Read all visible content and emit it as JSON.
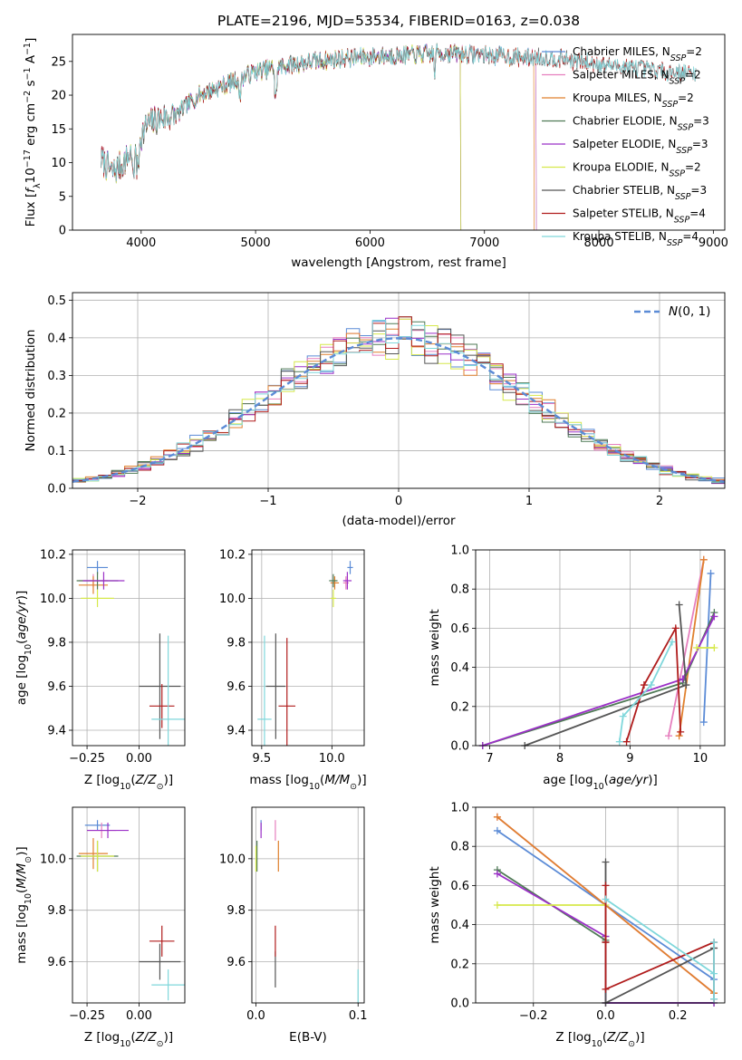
{
  "title": "PLATE=2196, MJD=53534, FIBERID=0163, z=0.038",
  "colors": {
    "Chabrier MILES": "#5b8bd6",
    "Salpeter MILES": "#e67fbe",
    "Kroupa MILES": "#e0802e",
    "Chabrier ELODIE": "#4f7a56",
    "Salpeter ELODIE": "#9b30c7",
    "Kroupa ELODIE": "#d6e84a",
    "Chabrier STELIB": "#555555",
    "Salpeter STELIB": "#b01c1c",
    "Kroupa STELIB": "#7fd7db",
    "gaussian": "#5b8bd6",
    "grid": "#b0b0b0"
  },
  "chart_data": [
    {
      "type": "line",
      "panel": "spectrum",
      "xlabel": "wavelength [Angstrom, rest frame]",
      "ylabel": "Flux [f_λ10^-17 erg cm^-2 s^-1 A^-1]",
      "xlim": [
        3400,
        9100
      ],
      "ylim": [
        0,
        29
      ],
      "xticks": [
        4000,
        5000,
        6000,
        7000,
        8000,
        9000
      ],
      "yticks": [
        0,
        5,
        10,
        15,
        20,
        25
      ],
      "continuum": {
        "x": [
          3650,
          3750,
          3850,
          3950,
          4050,
          4150,
          4300,
          4500,
          4800,
          5000,
          5200,
          5500,
          5800,
          6100,
          6400,
          6700,
          7000,
          7300,
          7600,
          7900,
          8200,
          8500,
          8800
        ],
        "y": [
          10.5,
          8.5,
          10.0,
          12.5,
          15.5,
          16.5,
          17.0,
          20.0,
          22.0,
          23.5,
          24.2,
          25.0,
          25.5,
          25.8,
          26.0,
          26.2,
          26.0,
          25.6,
          25.5,
          24.8,
          24.3,
          23.7,
          23.2
        ]
      },
      "series": [
        {
          "name": "Chabrier MILES",
          "n_ssp": "2",
          "x_end": 7450
        },
        {
          "name": "Salpeter MILES",
          "n_ssp": "2",
          "x_end": 7450
        },
        {
          "name": "Kroupa MILES",
          "n_ssp": "2",
          "x_end": 7430
        },
        {
          "name": "Chabrier ELODIE",
          "n_ssp": "3",
          "x_end": 6790
        },
        {
          "name": "Salpeter ELODIE",
          "n_ssp": "3",
          "x_end": 6790
        },
        {
          "name": "Kroupa ELODIE",
          "n_ssp": "2",
          "x_end": 6790
        },
        {
          "name": "Chabrier STELIB",
          "n_ssp": "3",
          "x_end": 8850
        },
        {
          "name": "Salpeter STELIB",
          "n_ssp": "4",
          "x_end": 8850
        },
        {
          "name": "Kroupa STELIB",
          "n_ssp": "4",
          "x_end": 8850
        }
      ],
      "legend_position": "upper right"
    },
    {
      "type": "bar",
      "panel": "residuals",
      "xlabel": "(data-model)/error",
      "ylabel": "Normed distribution",
      "xlim": [
        -2.5,
        2.5
      ],
      "ylim": [
        0,
        0.52
      ],
      "xticks": [
        -2,
        -1,
        0,
        1,
        2
      ],
      "yticks": [
        0.0,
        0.1,
        0.2,
        0.3,
        0.4,
        0.5
      ],
      "bin_width": 0.1,
      "reference": {
        "name": "N(0,1)",
        "mean": 0,
        "sigma": 1
      },
      "legend_position": "upper right"
    },
    {
      "type": "scatter",
      "panel": "age-vs-Z",
      "xlabel": "Z [log10(Z/Z_sun)]",
      "ylabel": "age [log10(age/yr)]",
      "xlim": [
        -0.32,
        0.22
      ],
      "ylim": [
        9.33,
        10.22
      ],
      "xticks": [
        -0.25,
        0.0
      ],
      "yticks": [
        9.4,
        9.6,
        9.8,
        10.0,
        10.2
      ],
      "points": [
        {
          "name": "Chabrier MILES",
          "x": -0.2,
          "y": 10.14,
          "xerr": 0.05,
          "yerr": 0.03
        },
        {
          "name": "Salpeter MILES",
          "x": -0.22,
          "y": 10.08,
          "xerr": 0.07,
          "yerr": 0.03
        },
        {
          "name": "Kroupa MILES",
          "x": -0.22,
          "y": 10.06,
          "xerr": 0.07,
          "yerr": 0.04
        },
        {
          "name": "Chabrier ELODIE",
          "x": -0.2,
          "y": 10.08,
          "xerr": 0.1,
          "yerr": 0.04
        },
        {
          "name": "Salpeter ELODIE",
          "x": -0.17,
          "y": 10.08,
          "xerr": 0.1,
          "yerr": 0.04
        },
        {
          "name": "Kroupa ELODIE",
          "x": -0.2,
          "y": 10.0,
          "xerr": 0.08,
          "yerr": 0.04
        },
        {
          "name": "Chabrier STELIB",
          "x": 0.1,
          "y": 9.6,
          "xerr": 0.1,
          "yerr": 0.24
        },
        {
          "name": "Salpeter STELIB",
          "x": 0.11,
          "y": 9.51,
          "xerr": 0.06,
          "yerr": 0.1
        },
        {
          "name": "Kroupa STELIB",
          "x": 0.14,
          "y": 9.45,
          "xerr": 0.08,
          "yerr": 0.38
        }
      ]
    },
    {
      "type": "scatter",
      "panel": "age-vs-mass",
      "xlabel": "mass [log10(M/M_sun)]",
      "ylabel": "",
      "xlim": [
        9.43,
        10.23
      ],
      "ylim": [
        9.33,
        10.22
      ],
      "xticks": [
        9.5,
        10.0
      ],
      "yticks": [
        9.4,
        9.6,
        9.8,
        10.0,
        10.2
      ],
      "points": [
        {
          "name": "Chabrier MILES",
          "x": 10.13,
          "y": 10.14,
          "xerr": 0.02,
          "yerr": 0.03
        },
        {
          "name": "Salpeter MILES",
          "x": 10.1,
          "y": 10.07,
          "xerr": 0.02,
          "yerr": 0.03
        },
        {
          "name": "Kroupa MILES",
          "x": 10.02,
          "y": 10.07,
          "xerr": 0.03,
          "yerr": 0.03
        },
        {
          "name": "Chabrier ELODIE",
          "x": 10.01,
          "y": 10.08,
          "xerr": 0.03,
          "yerr": 0.03
        },
        {
          "name": "Salpeter ELODIE",
          "x": 10.11,
          "y": 10.08,
          "xerr": 0.03,
          "yerr": 0.04
        },
        {
          "name": "Kroupa ELODIE",
          "x": 10.01,
          "y": 10.0,
          "xerr": 0.02,
          "yerr": 0.04
        },
        {
          "name": "Chabrier STELIB",
          "x": 9.6,
          "y": 9.6,
          "xerr": 0.07,
          "yerr": 0.24
        },
        {
          "name": "Salpeter STELIB",
          "x": 9.68,
          "y": 9.51,
          "xerr": 0.06,
          "yerr": 0.31
        },
        {
          "name": "Kroupa STELIB",
          "x": 9.52,
          "y": 9.45,
          "xerr": 0.05,
          "yerr": 0.38
        }
      ]
    },
    {
      "type": "line",
      "panel": "mass-weight-vs-age",
      "xlabel": "age [log10(age/yr)]",
      "ylabel": "mass weight",
      "xlim": [
        6.8,
        10.35
      ],
      "ylim": [
        0,
        1.0
      ],
      "xticks": [
        7,
        8,
        9,
        10
      ],
      "yticks": [
        0.0,
        0.2,
        0.4,
        0.6,
        0.8,
        1.0
      ],
      "series": [
        {
          "name": "Chabrier MILES",
          "x": [
            10.05,
            10.15
          ],
          "y": [
            0.12,
            0.88
          ]
        },
        {
          "name": "Salpeter MILES",
          "x": [
            9.55,
            10.05
          ],
          "y": [
            0.05,
            0.95
          ]
        },
        {
          "name": "Kroupa MILES",
          "x": [
            9.7,
            10.05
          ],
          "y": [
            0.05,
            0.95
          ]
        },
        {
          "name": "Chabrier ELODIE",
          "x": [
            6.9,
            9.75,
            10.2
          ],
          "y": [
            0.0,
            0.32,
            0.68
          ]
        },
        {
          "name": "Salpeter ELODIE",
          "x": [
            6.9,
            9.75,
            10.2
          ],
          "y": [
            0.0,
            0.34,
            0.66
          ]
        },
        {
          "name": "Kroupa ELODIE",
          "x": [
            9.95,
            10.2
          ],
          "y": [
            0.5,
            0.5
          ]
        },
        {
          "name": "Chabrier STELIB",
          "x": [
            7.5,
            9.8,
            9.7
          ],
          "y": [
            0.0,
            0.31,
            0.72
          ]
        },
        {
          "name": "Salpeter STELIB",
          "x": [
            8.95,
            9.2,
            9.65,
            9.72
          ],
          "y": [
            0.02,
            0.31,
            0.6,
            0.07
          ]
        },
        {
          "name": "Kroupa STELIB",
          "x": [
            8.85,
            8.9,
            9.3,
            9.6
          ],
          "y": [
            0.02,
            0.15,
            0.31,
            0.53
          ]
        }
      ]
    },
    {
      "type": "scatter",
      "panel": "mass-vs-Z",
      "xlabel": "Z [log10(Z/Z_sun)]",
      "ylabel": "mass [log10(M/M_sun)]",
      "xlim": [
        -0.32,
        0.22
      ],
      "ylim": [
        9.44,
        10.2
      ],
      "xticks": [
        -0.25,
        0.0
      ],
      "yticks": [
        9.6,
        9.8,
        10.0
      ],
      "points": [
        {
          "name": "Chabrier MILES",
          "x": -0.2,
          "y": 10.13,
          "xerr": 0.06,
          "yerr": 0.02
        },
        {
          "name": "Salpeter MILES",
          "x": -0.18,
          "y": 10.11,
          "xerr": 0.07,
          "yerr": 0.03
        },
        {
          "name": "Kroupa MILES",
          "x": -0.22,
          "y": 10.02,
          "xerr": 0.07,
          "yerr": 0.06
        },
        {
          "name": "Chabrier ELODIE",
          "x": -0.2,
          "y": 10.01,
          "xerr": 0.1,
          "yerr": 0.06
        },
        {
          "name": "Salpeter ELODIE",
          "x": -0.15,
          "y": 10.11,
          "xerr": 0.1,
          "yerr": 0.03
        },
        {
          "name": "Kroupa ELODIE",
          "x": -0.2,
          "y": 10.01,
          "xerr": 0.08,
          "yerr": 0.06
        },
        {
          "name": "Chabrier STELIB",
          "x": 0.1,
          "y": 9.6,
          "xerr": 0.1,
          "yerr": 0.07
        },
        {
          "name": "Salpeter STELIB",
          "x": 0.11,
          "y": 9.68,
          "xerr": 0.06,
          "yerr": 0.06
        },
        {
          "name": "Kroupa STELIB",
          "x": 0.14,
          "y": 9.51,
          "xerr": 0.08,
          "yerr": 0.06
        }
      ]
    },
    {
      "type": "scatter",
      "panel": "mass-vs-EBV",
      "xlabel": "E(B-V)",
      "ylabel": "",
      "xlim": [
        -0.004,
        0.106
      ],
      "ylim": [
        9.44,
        10.2
      ],
      "xticks": [
        0.0,
        0.1
      ],
      "yticks": [
        9.6,
        9.8,
        10.0
      ],
      "points": [
        {
          "name": "Chabrier MILES",
          "x": 0.005,
          "y": 10.13,
          "xerr": 0,
          "yerr": 0.02
        },
        {
          "name": "Salpeter MILES",
          "x": 0.019,
          "y": 10.11,
          "xerr": 0,
          "yerr": 0.04
        },
        {
          "name": "Kroupa MILES",
          "x": 0.022,
          "y": 10.01,
          "xerr": 0,
          "yerr": 0.06
        },
        {
          "name": "Chabrier ELODIE",
          "x": 0.001,
          "y": 10.01,
          "xerr": 0,
          "yerr": 0.06
        },
        {
          "name": "Salpeter ELODIE",
          "x": 0.005,
          "y": 10.11,
          "xerr": 0,
          "yerr": 0.03
        },
        {
          "name": "Kroupa ELODIE",
          "x": 0.0,
          "y": 10.0,
          "xerr": 0,
          "yerr": 0.05
        },
        {
          "name": "Chabrier STELIB",
          "x": 0.019,
          "y": 9.57,
          "xerr": 0,
          "yerr": 0.07
        },
        {
          "name": "Salpeter STELIB",
          "x": 0.019,
          "y": 9.68,
          "xerr": 0,
          "yerr": 0.06
        },
        {
          "name": "Kroupa STELIB",
          "x": 0.1,
          "y": 9.5,
          "xerr": 0,
          "yerr": 0.07
        }
      ]
    },
    {
      "type": "line",
      "panel": "mass-weight-vs-Z",
      "xlabel": "Z [log10(Z/Z_sun)]",
      "ylabel": "mass weight",
      "xlim": [
        -0.36,
        0.33
      ],
      "ylim": [
        0,
        1.0
      ],
      "xticks": [
        -0.2,
        0.0,
        0.2
      ],
      "yticks": [
        0.0,
        0.2,
        0.4,
        0.6,
        0.8,
        1.0
      ],
      "series": [
        {
          "name": "Chabrier MILES",
          "x": [
            -0.3,
            0.3
          ],
          "y": [
            0.88,
            0.12
          ]
        },
        {
          "name": "Salpeter MILES",
          "x": [
            -0.3,
            0.3
          ],
          "y": [
            0.95,
            0.05
          ]
        },
        {
          "name": "Kroupa MILES",
          "x": [
            -0.3,
            0.3
          ],
          "y": [
            0.95,
            0.05
          ]
        },
        {
          "name": "Chabrier ELODIE",
          "x": [
            -0.3,
            0.0,
            0.0,
            0.3
          ],
          "y": [
            0.68,
            0.32,
            0.0,
            0.0
          ]
        },
        {
          "name": "Salpeter ELODIE",
          "x": [
            -0.3,
            0.0,
            0.0,
            0.3
          ],
          "y": [
            0.66,
            0.34,
            0.0,
            0.0
          ]
        },
        {
          "name": "Kroupa ELODIE",
          "x": [
            -0.3,
            0.0
          ],
          "y": [
            0.5,
            0.5
          ]
        },
        {
          "name": "Chabrier STELIB",
          "x": [
            0.0,
            0.0,
            0.0,
            0.3,
            0.3
          ],
          "y": [
            0.72,
            0.31,
            0.0,
            0.28,
            0.28
          ]
        },
        {
          "name": "Salpeter STELIB",
          "x": [
            0.0,
            0.0,
            0.0,
            0.3,
            0.3
          ],
          "y": [
            0.6,
            0.31,
            0.07,
            0.31,
            0.02
          ]
        },
        {
          "name": "Kroupa STELIB",
          "x": [
            0.0,
            0.3,
            0.3,
            0.3
          ],
          "y": [
            0.53,
            0.15,
            0.31,
            0.02
          ]
        }
      ]
    }
  ]
}
